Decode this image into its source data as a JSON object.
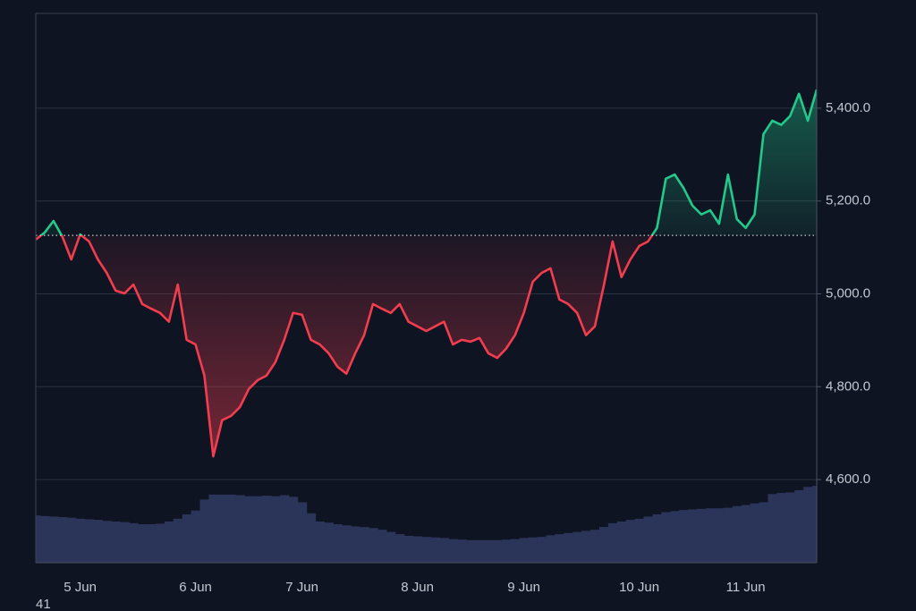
{
  "chart_data": {
    "type": "line",
    "categories": [
      null,
      null,
      null,
      null,
      null,
      "5 Jun",
      null,
      null,
      null,
      null,
      null,
      null,
      null,
      null,
      null,
      null,
      null,
      null,
      "6 Jun",
      null,
      null,
      null,
      null,
      null,
      null,
      null,
      null,
      null,
      null,
      null,
      "7 Jun",
      null,
      null,
      null,
      null,
      null,
      null,
      null,
      null,
      null,
      null,
      null,
      null,
      "8 Jun",
      null,
      null,
      null,
      null,
      null,
      null,
      null,
      null,
      null,
      null,
      null,
      "9 Jun",
      null,
      null,
      null,
      null,
      null,
      null,
      null,
      null,
      null,
      null,
      null,
      null,
      "10 Jun",
      null,
      null,
      null,
      null,
      null,
      null,
      null,
      null,
      null,
      null,
      null,
      "11 Jun",
      null,
      null,
      null,
      null,
      null,
      null,
      null,
      null
    ],
    "series": [
      {
        "up_color": "#22c98a",
        "down_color": "#f23d4f",
        "values": [
          5117,
          5132,
          5157,
          5123,
          5074,
          5128,
          5113,
          5074,
          5045,
          5007,
          5001,
          5020,
          4978,
          4968,
          4959,
          4940,
          5020,
          4901,
          4891,
          4824,
          4650,
          4728,
          4737,
          4756,
          4795,
          4814,
          4824,
          4853,
          4901,
          4959,
          4955,
          4901,
          4891,
          4872,
          4843,
          4828,
          4872,
          4911,
          4978,
          4968,
          4959,
          4978,
          4940,
          4930,
          4920,
          4930,
          4940,
          4891,
          4901,
          4897,
          4905,
          4872,
          4862,
          4882,
          4911,
          4959,
          5026,
          5045,
          5055,
          4988,
          4978,
          4959,
          4911,
          4930,
          5017,
          5113,
          5036,
          5074,
          5103,
          5113,
          5142,
          5248,
          5257,
          5228,
          5190,
          5171,
          5180,
          5151,
          5257,
          5161,
          5142,
          5171,
          5344,
          5373,
          5364,
          5383,
          5431,
          5373,
          5440
        ]
      },
      {
        "axis": "y2",
        "color": "#2b3459",
        "values": [
          8.6,
          8.5,
          8.4,
          8.3,
          8.2,
          8.0,
          7.9,
          7.8,
          7.6,
          7.5,
          7.4,
          7.2,
          7.0,
          7.0,
          7.1,
          7.5,
          8.0,
          8.8,
          9.5,
          11.5,
          12.4,
          12.4,
          12.4,
          12.3,
          12.1,
          12.1,
          12.2,
          12.1,
          12.3,
          12.0,
          11.0,
          9.0,
          7.5,
          7.3,
          7.0,
          6.8,
          6.6,
          6.5,
          6.3,
          6.0,
          5.6,
          5.2,
          4.9,
          4.8,
          4.7,
          4.6,
          4.5,
          4.3,
          4.2,
          4.1,
          4.1,
          4.1,
          4.1,
          4.2,
          4.3,
          4.5,
          4.6,
          4.7,
          5.0,
          5.2,
          5.4,
          5.6,
          5.8,
          6.0,
          6.5,
          7.2,
          7.5,
          7.8,
          8.0,
          8.4,
          8.8,
          9.2,
          9.4,
          9.6,
          9.7,
          9.8,
          9.9,
          9.9,
          10.0,
          10.3,
          10.5,
          10.8,
          11.0,
          12.5,
          12.7,
          12.8,
          13.2,
          13.8,
          14.0
        ]
      }
    ],
    "baseline": 5126,
    "ylim": [
      4421,
      5604
    ],
    "yticks": [
      {
        "value": 4600,
        "label": "4,600.0"
      },
      {
        "value": 4800,
        "label": "4,800.0"
      },
      {
        "value": 5000,
        "label": "5,000.0"
      },
      {
        "value": 5200,
        "label": "5,200.0"
      },
      {
        "value": 5400,
        "label": "5,400.0"
      }
    ],
    "y2lim": [
      0,
      100
    ],
    "grid": true,
    "watermark": "41"
  }
}
